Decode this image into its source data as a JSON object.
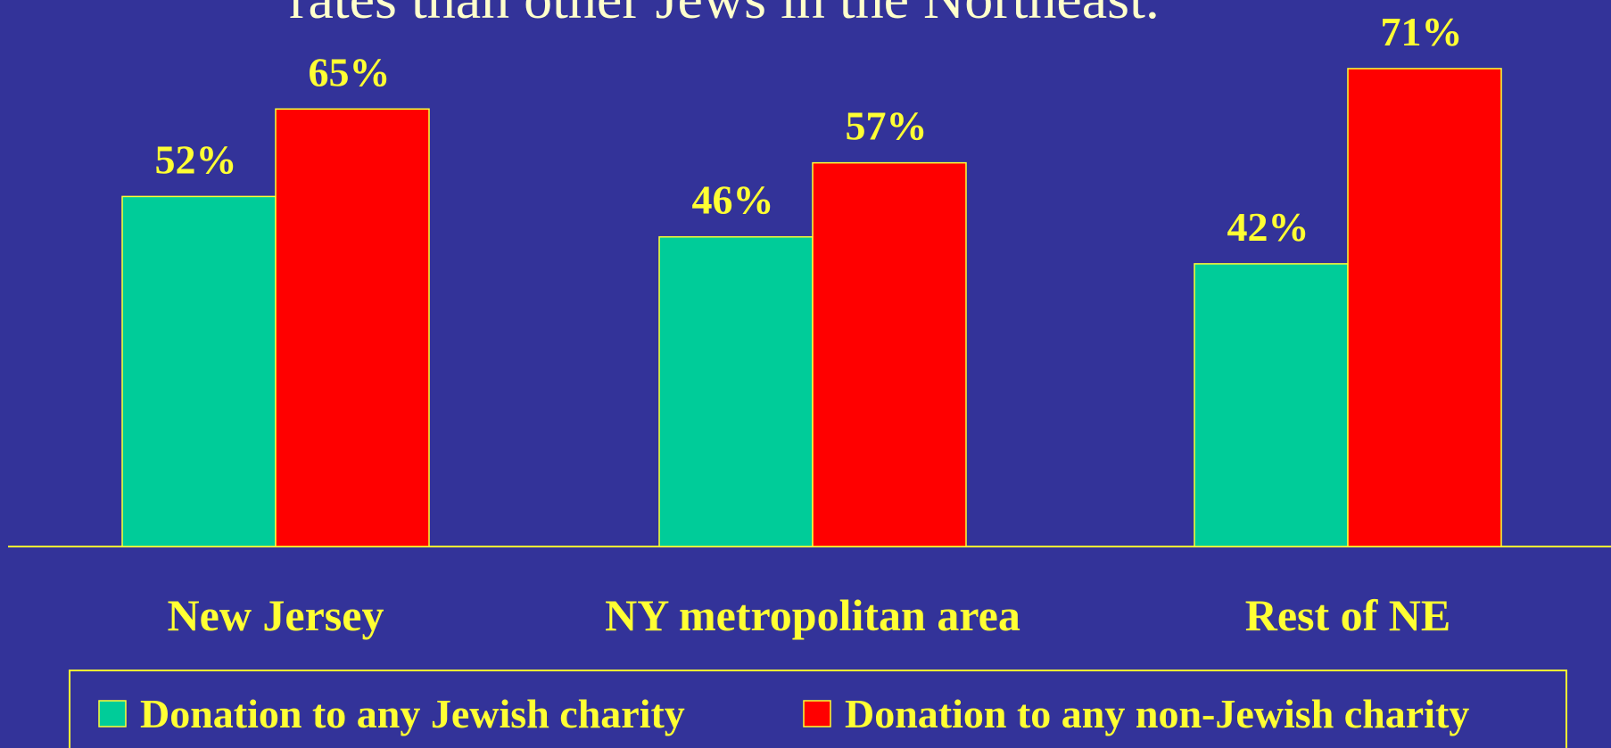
{
  "chart_data": {
    "type": "bar",
    "title": "rates than other Jews in the Northeast.",
    "categories": [
      "New Jersey",
      "NY metropolitan area",
      "Rest of NE"
    ],
    "series": [
      {
        "name": "Donation to any Jewish charity",
        "color": "#00cc99",
        "values": [
          52,
          46,
          42
        ],
        "value_labels": [
          "52%",
          "46%",
          "42%"
        ]
      },
      {
        "name": "Donation to any non-Jewish charity",
        "color": "#ff0000",
        "values": [
          65,
          57,
          71
        ],
        "value_labels": [
          "65%",
          "57%",
          "71%"
        ]
      }
    ],
    "ylim": [
      0,
      80
    ],
    "legend": "bottom"
  }
}
